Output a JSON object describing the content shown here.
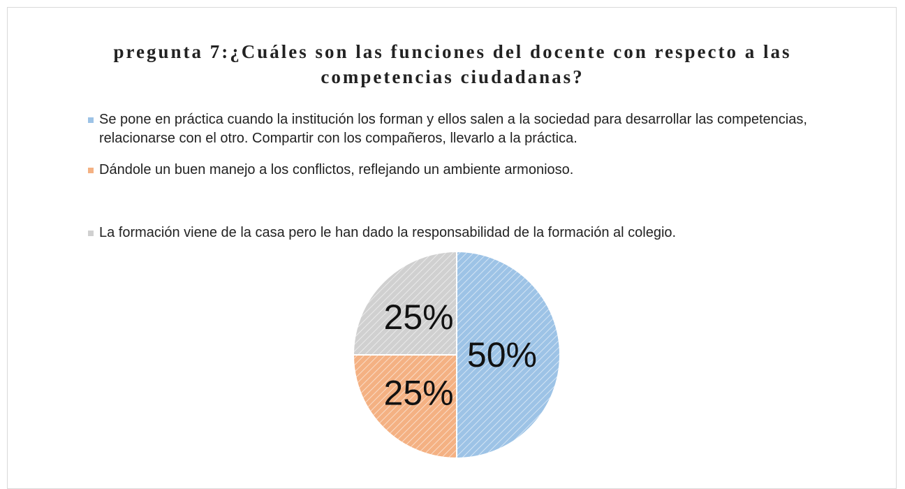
{
  "chart_data": {
    "type": "pie",
    "title": "pregunta 7:¿Cuáles son las funciones del docente con respecto a las competencias ciudadanas?",
    "categories": [
      "Se pone en práctica cuando la institución los forman y ellos salen a la sociedad para desarrollar las competencias, relacionarse con el otro. Compartir con los compañeros, llevarlo a la práctica.",
      "Dándole un buen manejo a los conflictos, reflejando un ambiente armonioso.",
      "La formación viene de la casa pero le han dado la responsabilidad de la formación al colegio."
    ],
    "values": [
      50,
      25,
      25
    ],
    "value_labels": [
      "50%",
      "25%",
      "25%"
    ],
    "colors": [
      "#9dc3e6",
      "#f4b183",
      "#d0d0d0"
    ],
    "legend": "top"
  }
}
